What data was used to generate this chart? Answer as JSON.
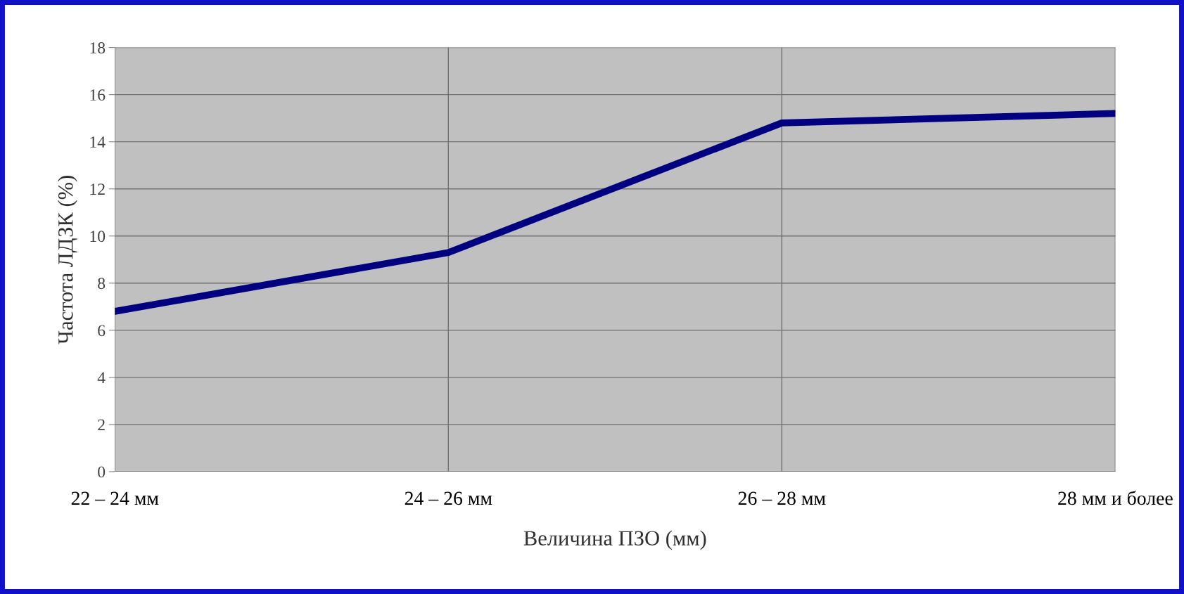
{
  "chart_data": {
    "type": "line",
    "xlabel": "Величина ПЗО (мм)",
    "ylabel": "Частота ЛДЗК (%)",
    "categories": [
      "22 – 24 мм",
      "24 – 26 мм",
      "26 – 28 мм",
      "28 мм и более"
    ],
    "values": [
      6.8,
      9.3,
      14.8,
      15.2
    ],
    "color": "#000080",
    "ylim": [
      0,
      18
    ],
    "yticks": [
      0,
      2,
      4,
      6,
      8,
      10,
      12,
      14,
      16,
      18
    ],
    "grid": true,
    "marker": "none",
    "line_style": "solid"
  }
}
